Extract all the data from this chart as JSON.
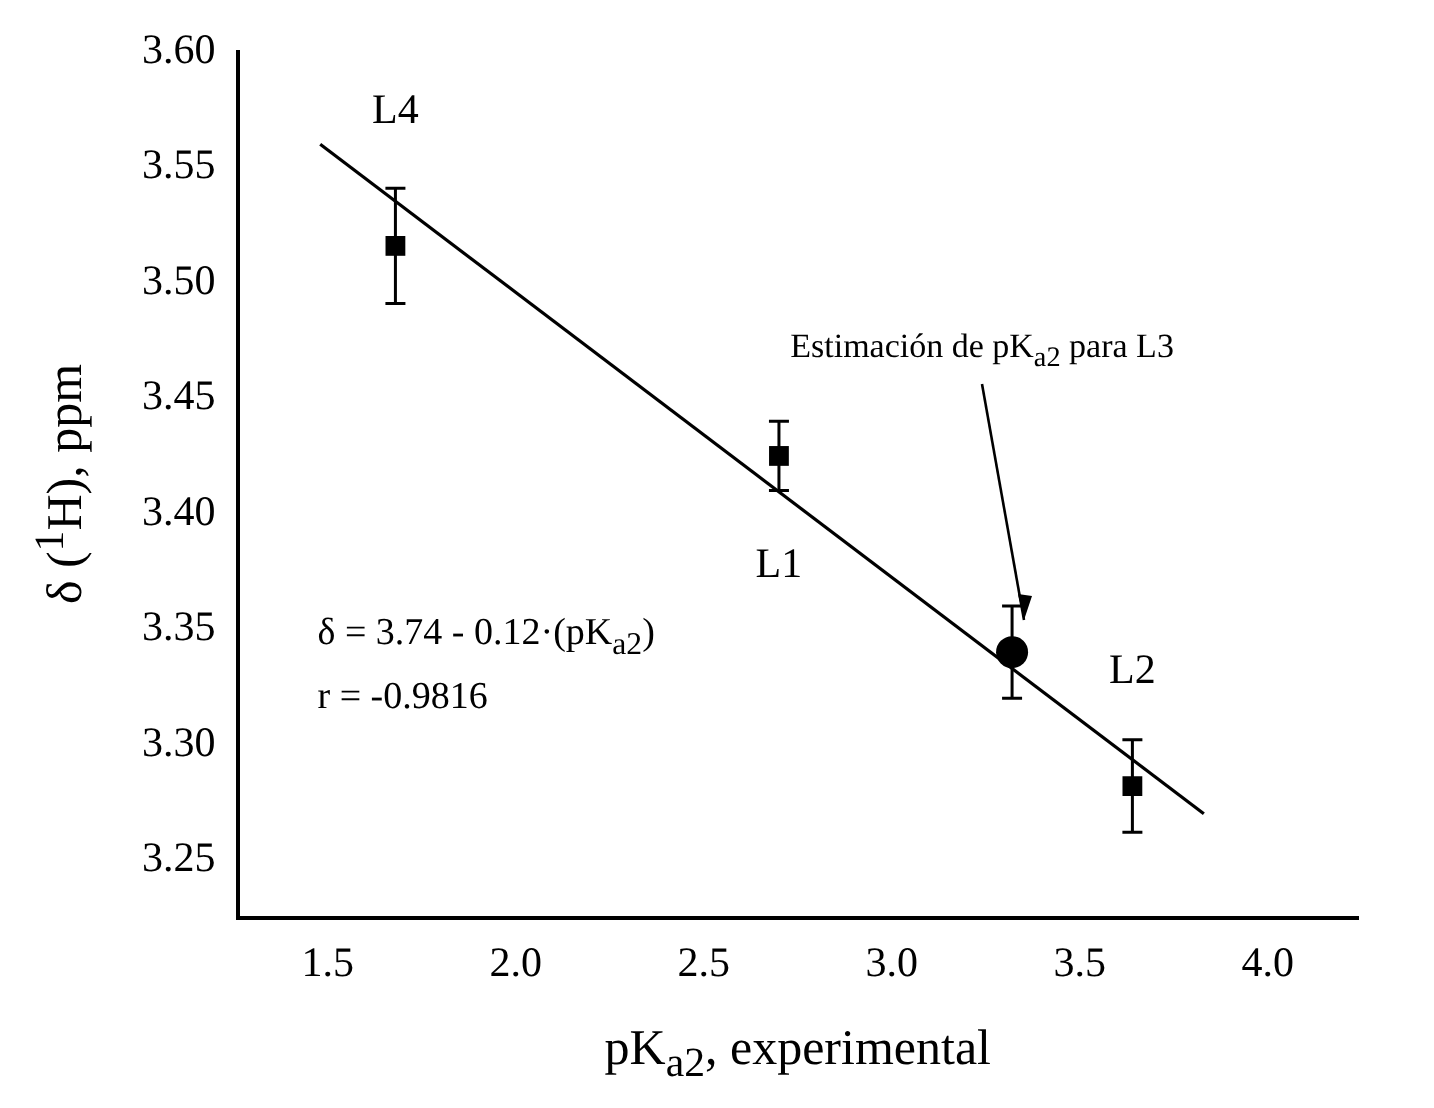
{
  "chart_data": {
    "type": "scatter",
    "xlabel": "pK$_{a2}$, experimental",
    "ylabel": "δ ($^{1}$H), ppm",
    "xlim": [
      1.26,
      4.24
    ],
    "ylim": [
      3.225,
      3.6
    ],
    "xticks": [
      {
        "value": 1.5,
        "label": "1.5"
      },
      {
        "value": 2.0,
        "label": "2.0"
      },
      {
        "value": 2.5,
        "label": "2.5"
      },
      {
        "value": 3.0,
        "label": "3.0"
      },
      {
        "value": 3.5,
        "label": "3.5"
      },
      {
        "value": 4.0,
        "label": "4.0"
      }
    ],
    "yticks": [
      {
        "value": 3.25,
        "label": "3.25"
      },
      {
        "value": 3.3,
        "label": "3.30"
      },
      {
        "value": 3.35,
        "label": "3.35"
      },
      {
        "value": 3.4,
        "label": "3.40"
      },
      {
        "value": 3.45,
        "label": "3.45"
      },
      {
        "value": 3.5,
        "label": "3.50"
      },
      {
        "value": 3.55,
        "label": "3.55"
      },
      {
        "value": 3.6,
        "label": "3.60"
      }
    ],
    "grid": false,
    "legend": false,
    "series": [
      {
        "type": "scatter",
        "marker": "square",
        "color": "#000000",
        "x": [
          1.68,
          2.7,
          3.64
        ],
        "values": [
          3.516,
          3.425,
          3.282
        ],
        "errors": [
          0.025,
          0.015,
          0.02
        ]
      },
      {
        "type": "scatter",
        "marker": "circle",
        "color": "#000000",
        "x": [
          3.32
        ],
        "values": [
          3.34
        ],
        "errors": [
          0.02
        ]
      },
      {
        "type": "line",
        "marker": "none",
        "color": "#000000",
        "x": [
          1.48,
          3.83
        ],
        "values": [
          3.56,
          3.27
        ]
      }
    ],
    "annotations": [
      {
        "text": "L4",
        "x": 1.68,
        "y": 3.516
      },
      {
        "text": "L1",
        "x": 2.7,
        "y": 3.425
      },
      {
        "text": "L2",
        "x": 3.64,
        "y": 3.282
      },
      "Estimación de pK$_{a2}$ para L3",
      "δ = 3.74 - 0.12·(pK$_{a2}$)",
      "r = -0.9816"
    ]
  }
}
